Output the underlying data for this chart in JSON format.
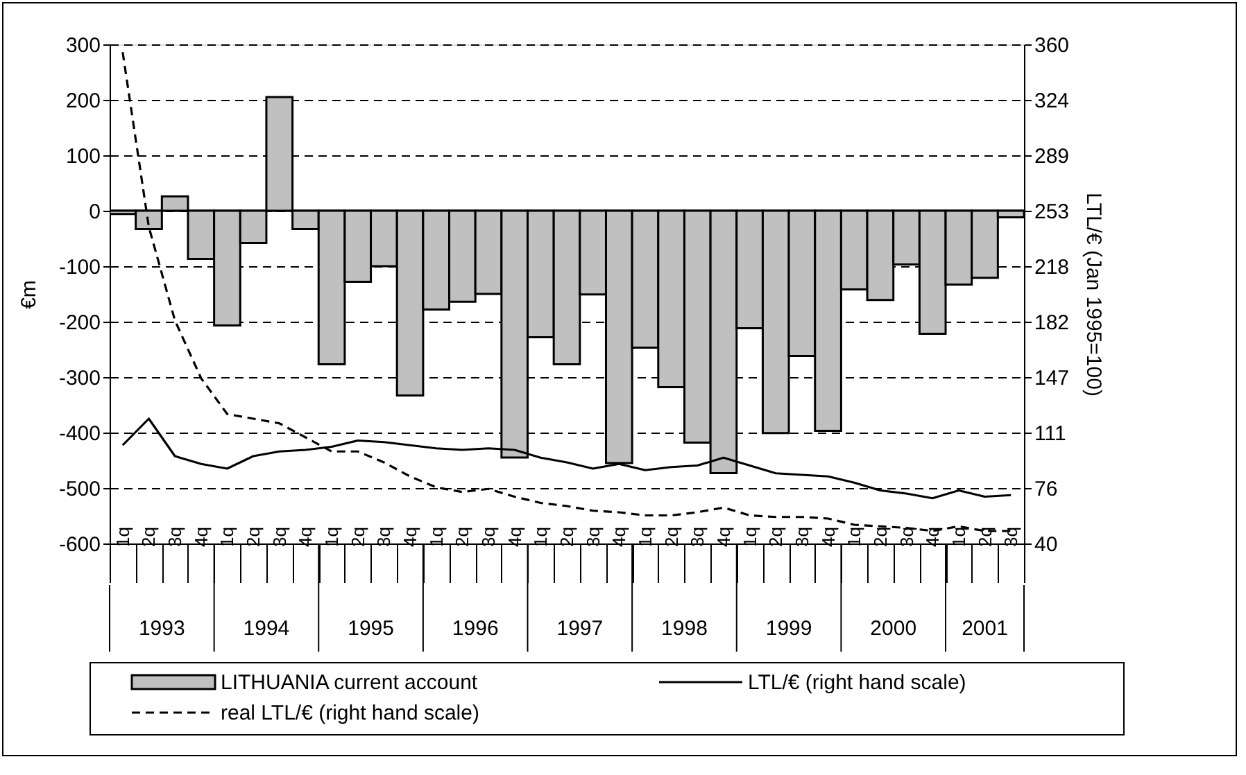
{
  "chart_data": {
    "type": "bar",
    "ylabel": "€m",
    "y2label": "LTL/€ (Jan 1995=100)",
    "categories": [
      "1q",
      "2q",
      "3q",
      "4q",
      "1q",
      "2q",
      "3q",
      "4q",
      "1q",
      "2q",
      "3q",
      "4q",
      "1q",
      "2q",
      "3q",
      "4q",
      "1q",
      "2q",
      "3q",
      "4q",
      "1q",
      "2q",
      "3q",
      "4q",
      "1q",
      "2q",
      "3q",
      "4q",
      "1q",
      "2q",
      "3q",
      "4q",
      "1q",
      "2q",
      "3q"
    ],
    "annotations": [
      "1993",
      "1994",
      "1995",
      "1996",
      "1997",
      "1998",
      "1999",
      "2000",
      "2001"
    ],
    "series": [
      {
        "name": "LITHUANIA current account",
        "color": "#c0c0c0",
        "values": [
          -6,
          -33,
          26,
          -87,
          -207,
          -58,
          205,
          -33,
          -277,
          -128,
          -100,
          -333,
          -178,
          -164,
          -150,
          -445,
          -228,
          -277,
          -151,
          -455,
          -247,
          -318,
          -418,
          -473,
          -212,
          -401,
          -262,
          -397,
          -142,
          -161,
          -97,
          -222,
          -133,
          -121,
          -12
        ]
      },
      {
        "name": "LTL/€ (right hand scale)",
        "type": "line",
        "axis": "y2",
        "color": "#000000",
        "line_style": "solid",
        "values": [
          103,
          120,
          96,
          91,
          88,
          96,
          99,
          100,
          102,
          106,
          105,
          103,
          101,
          100,
          101,
          100,
          95,
          92,
          88,
          91,
          87,
          89,
          90,
          95,
          90,
          85,
          84,
          83,
          79,
          74,
          72,
          69,
          74,
          70,
          71
        ]
      },
      {
        "name": "real LTL/€ (right hand scale)",
        "type": "line",
        "axis": "y2",
        "color": "#000000",
        "line_style": "dashed",
        "values": [
          355,
          243,
          183,
          146,
          123,
          120,
          117,
          108,
          99,
          99,
          92,
          83,
          76,
          73,
          75,
          70,
          66,
          64,
          61,
          60,
          58,
          58,
          60,
          63,
          58,
          57,
          57,
          56,
          52,
          51,
          50,
          48,
          51,
          48,
          48
        ]
      }
    ],
    "ylim": [
      -600,
      300
    ],
    "yticks": [
      -600,
      -500,
      -400,
      -300,
      -200,
      -100,
      0,
      100,
      200,
      300
    ],
    "y2lim": [
      40,
      360
    ],
    "y2ticks": [
      40,
      {
        "value": 75.56,
        "label": "76"
      },
      {
        "value": 111.11,
        "label": "111"
      },
      {
        "value": 146.67,
        "label": "147"
      },
      {
        "value": 182.22,
        "label": "182"
      },
      {
        "value": 217.78,
        "label": "218"
      },
      {
        "value": 253.33,
        "label": "253"
      },
      {
        "value": 288.89,
        "label": "289"
      },
      {
        "value": 324.44,
        "label": "324"
      },
      360
    ],
    "ref_lines": [
      {
        "axis": "y",
        "value": 0,
        "color": "#000000",
        "line_style": "solid"
      }
    ],
    "grid": "y",
    "legend": "bottom"
  }
}
